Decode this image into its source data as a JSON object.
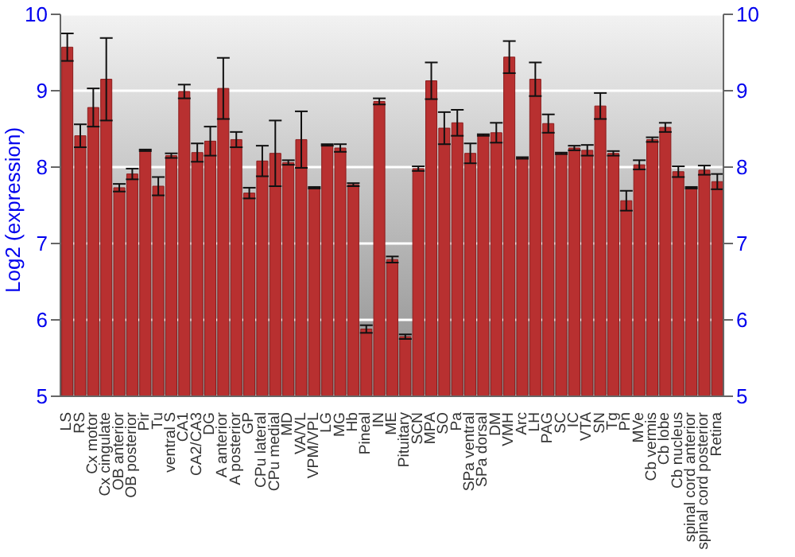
{
  "chart_data": {
    "type": "bar",
    "ylabel": "Log2 (expression)",
    "categories": [
      "LS",
      "RS",
      "Cx motor",
      "Cx cingulate",
      "OB anterior",
      "OB posterior",
      "Pir",
      "Tu",
      "ventral S",
      "CA1",
      "CA2/CA3",
      "DG",
      "A anterior",
      "A posterior",
      "GP",
      "CPu lateral",
      "CPu medial",
      "MD",
      "VA/VL",
      "VPM/VPL",
      "LG",
      "MG",
      "Hb",
      "Pineal",
      "IN",
      "ME",
      "Pituitary",
      "SCN",
      "MPA",
      "SO",
      "Pa",
      "SPa ventral",
      "SPa dorsal",
      "DM",
      "VMH",
      "Arc",
      "LH",
      "PAG",
      "SC",
      "IC",
      "VTA",
      "SN",
      "Tg",
      "Pn",
      "MVe",
      "Cb vermis",
      "Cb lobe",
      "Cb nucleus",
      "spinal cord anterior",
      "spinal cord posterior",
      "Retina"
    ],
    "values": [
      9.57,
      8.41,
      8.78,
      9.15,
      7.73,
      7.91,
      8.22,
      7.75,
      8.15,
      8.99,
      8.19,
      8.34,
      9.03,
      8.36,
      7.66,
      8.08,
      8.18,
      8.06,
      8.36,
      7.73,
      8.29,
      8.25,
      7.77,
      5.88,
      8.86,
      6.79,
      5.78,
      7.98,
      9.13,
      8.51,
      8.58,
      8.18,
      8.42,
      8.45,
      9.44,
      8.12,
      9.15,
      8.57,
      8.18,
      8.25,
      8.22,
      8.8,
      8.18,
      7.56,
      8.03,
      8.36,
      8.52,
      7.94,
      7.73,
      7.96,
      7.81
    ],
    "errors": [
      0.18,
      0.15,
      0.25,
      0.54,
      0.05,
      0.07,
      0.01,
      0.12,
      0.03,
      0.09,
      0.12,
      0.19,
      0.4,
      0.1,
      0.07,
      0.2,
      0.43,
      0.03,
      0.37,
      0.01,
      0.01,
      0.05,
      0.02,
      0.05,
      0.04,
      0.04,
      0.03,
      0.03,
      0.24,
      0.21,
      0.17,
      0.13,
      0.01,
      0.13,
      0.21,
      0.01,
      0.22,
      0.12,
      0.01,
      0.03,
      0.07,
      0.17,
      0.03,
      0.13,
      0.06,
      0.03,
      0.06,
      0.07,
      0.01,
      0.06,
      0.1
    ],
    "color": "#b83030",
    "ylim": [
      5,
      10
    ],
    "yticks": [
      5,
      6,
      7,
      8,
      9,
      10
    ],
    "y2lim": [
      5,
      10
    ],
    "y2ticks": [
      5,
      6,
      7,
      8,
      9,
      10
    ],
    "grid": "y"
  }
}
